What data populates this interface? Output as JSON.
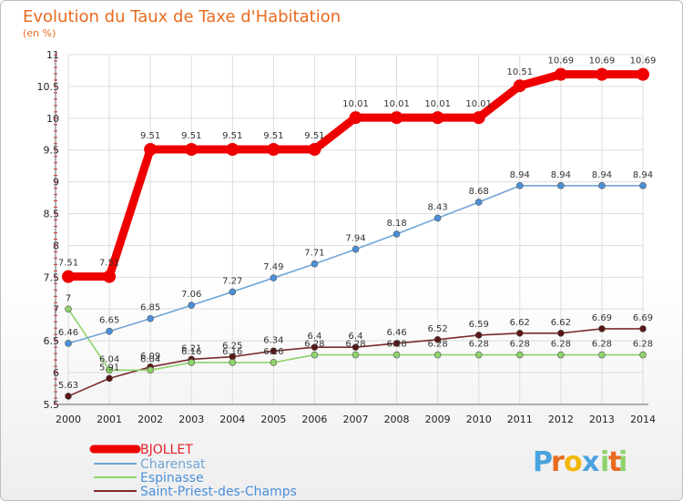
{
  "chart_data": {
    "type": "line",
    "title": "Evolution du Taux de Taxe d'Habitation",
    "subtitle": "(en %)",
    "x": [
      "2000",
      "2001",
      "2002",
      "2003",
      "2004",
      "2005",
      "2006",
      "2007",
      "2008",
      "2009",
      "2010",
      "2011",
      "2012",
      "2013",
      "2014"
    ],
    "ylim": [
      5.5,
      11
    ],
    "yticks": [
      "5.5",
      "6",
      "6.5",
      "7",
      "7.5",
      "8",
      "8.5",
      "9",
      "9.5",
      "10",
      "10.5",
      "11"
    ],
    "grid": true,
    "legend_position": "bottom-left",
    "series": [
      {
        "name": "BJOLLET",
        "color": "#ee0000",
        "values": [
          7.51,
          7.51,
          9.51,
          9.51,
          9.51,
          9.51,
          9.51,
          10.01,
          10.01,
          10.01,
          10.01,
          10.51,
          10.69,
          10.69,
          10.69
        ],
        "labels": [
          "7.51",
          "7.51",
          "9.51",
          "9.51",
          "9.51",
          "9.51",
          "9.51",
          "10.01",
          "10.01",
          "10.01",
          "10.01",
          "10.51",
          "10.69",
          "10.69",
          "10.69"
        ]
      },
      {
        "name": "Charensat",
        "color": "#6fa5d6",
        "values": [
          6.46,
          6.65,
          6.85,
          7.06,
          7.27,
          7.49,
          7.71,
          7.94,
          8.18,
          8.43,
          8.68,
          8.94,
          8.94,
          8.94,
          8.94
        ],
        "labels": [
          "6.46",
          "6.65",
          "6.85",
          "7.06",
          "7.27",
          "7.49",
          "7.71",
          "7.94",
          "8.18",
          "8.43",
          "8.68",
          "8.94",
          "8.94",
          "8.94",
          "8.94"
        ]
      },
      {
        "name": "Espinasse",
        "color": "#8ed36b",
        "values": [
          7,
          6.04,
          6.04,
          6.16,
          6.16,
          6.16,
          6.28,
          6.28,
          6.28,
          6.28,
          6.28,
          6.28,
          6.28,
          6.28,
          6.28
        ],
        "labels": [
          "7",
          "6.04",
          "6.04",
          "6.16",
          "6.16",
          "6.16",
          "6.28",
          "6.28",
          "6.28",
          "6.28",
          "6.28",
          "6.28",
          "6.28",
          "6.28",
          "6.28"
        ]
      },
      {
        "name": "Saint-Priest-des-Champs",
        "color": "#7a2a2a",
        "values": [
          5.63,
          5.91,
          6.09,
          6.21,
          6.25,
          6.34,
          6.4,
          6.4,
          6.46,
          6.52,
          6.59,
          6.62,
          6.62,
          6.69,
          6.69
        ],
        "labels": [
          "5.63",
          "5.91",
          "6.09",
          "6.21",
          "6.25",
          "6.34",
          "6.4",
          "6.4",
          "6.46",
          "6.52",
          "6.59",
          "6.62",
          "6.62",
          "6.69",
          "6.69"
        ]
      }
    ]
  },
  "logo_text": "Proxiti",
  "colors": {
    "title": "#e86b1f",
    "grid": "#dddddd",
    "axis": "#666666"
  }
}
